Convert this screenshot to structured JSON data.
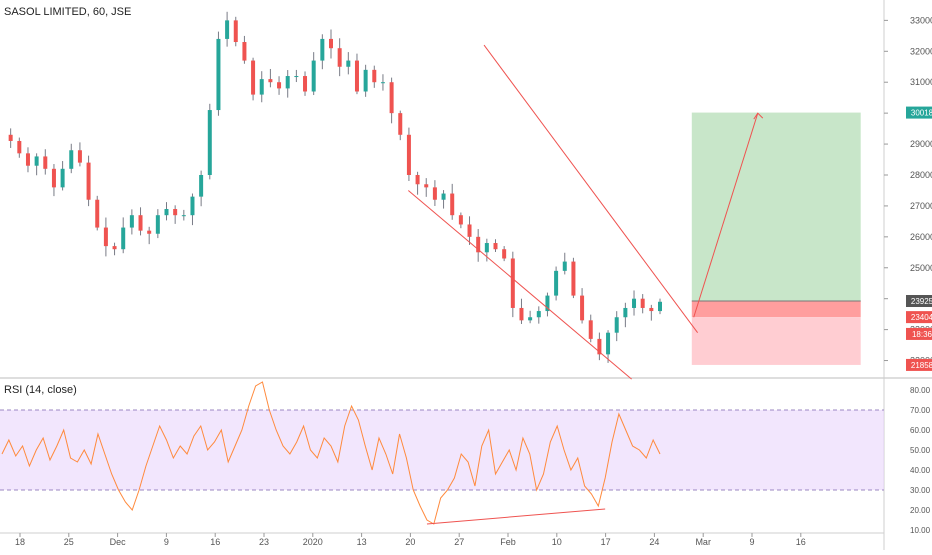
{
  "symbol_title": "SASOL LIMITED, 60, JSE",
  "rsi_title": "RSI (14, close)",
  "chart_data": [
    {
      "type": "candlestick",
      "title": "SASOL LIMITED, 60, JSE",
      "ylim": [
        21500,
        33400
      ],
      "price_ticks": [
        22000,
        23000,
        24000,
        25000,
        26000,
        27000,
        28000,
        29000,
        30000,
        31000,
        32000,
        33000
      ],
      "x_ticks": [
        "18",
        "25",
        "Dec",
        "9",
        "16",
        "23",
        "2020",
        "13",
        "20",
        "27",
        "Feb",
        "10",
        "17",
        "24",
        "Mar",
        "9",
        "16"
      ],
      "price_path": [
        29300,
        29100,
        28700,
        28300,
        28600,
        28200,
        27600,
        28200,
        28800,
        28400,
        27200,
        26300,
        25700,
        25600,
        26300,
        26700,
        26200,
        26100,
        26700,
        26900,
        26700,
        26700,
        27300,
        28000,
        30100,
        32400,
        33000,
        32300,
        31700,
        30600,
        31100,
        31000,
        30800,
        31200,
        31200,
        30700,
        31700,
        32400,
        32100,
        31500,
        31700,
        30700,
        31400,
        31000,
        31000,
        30000,
        29300,
        28000,
        27700,
        27600,
        27200,
        27400,
        26700,
        26400,
        26000,
        25500,
        25800,
        25600,
        25300,
        23700,
        23300,
        23400,
        23600,
        24100,
        24900,
        25200,
        24100,
        23300,
        22700,
        22200,
        22900,
        23400,
        23700,
        24000,
        23700,
        23600,
        23900
      ],
      "markers": [
        {
          "label": "30018",
          "value": 30018,
          "color": "#26a69a"
        },
        {
          "label": "23925",
          "value": 23925,
          "color": "#555555"
        },
        {
          "label": "23404",
          "value": 23404,
          "color": "#ef5350"
        },
        {
          "label": "18:36",
          "value": 22860,
          "color": "#ef5350"
        },
        {
          "label": "21858",
          "value": 21858,
          "color": "#ef5350"
        }
      ],
      "channel": {
        "upper": [
          [
            23.9,
            32200
          ],
          [
            34.9,
            22900
          ]
        ],
        "lower": [
          [
            20.0,
            27500
          ],
          [
            31.5,
            21400
          ]
        ]
      },
      "position": {
        "entry": 23925,
        "target": 30018,
        "stop": 21858,
        "start_index": 34.6,
        "end_index": 43.3
      },
      "forecast_arrow": [
        [
          34.7,
          23400
        ],
        [
          38.0,
          30000
        ]
      ],
      "colors": {
        "up": "#26a69a",
        "down": "#ef5350",
        "wick": "#787b86",
        "target_zone": "#c8e6c9",
        "stop_zone": "#ffcdd2",
        "stop_zone_dark": "#ff9e9e",
        "channel": "#ef5350"
      }
    },
    {
      "type": "line",
      "title": "RSI (14, close)",
      "ylim": [
        10,
        85
      ],
      "ticks": [
        10,
        20,
        30,
        40,
        50,
        60,
        70,
        80
      ],
      "tick_labels": [
        "10.00",
        "20.00",
        "30.00",
        "40.00",
        "50.00",
        "60.00",
        "70.00",
        "80.00"
      ],
      "overbought": 70,
      "oversold": 30,
      "values": [
        48,
        55,
        47,
        52,
        42,
        50,
        56,
        45,
        52,
        60,
        46,
        44,
        50,
        43,
        58,
        48,
        38,
        30,
        24,
        20,
        30,
        42,
        52,
        62,
        55,
        46,
        52,
        48,
        57,
        62,
        50,
        54,
        60,
        44,
        52,
        60,
        72,
        82,
        84,
        70,
        60,
        52,
        48,
        54,
        62,
        50,
        46,
        56,
        52,
        44,
        62,
        72,
        65,
        52,
        40,
        56,
        48,
        38,
        58,
        46,
        30,
        22,
        15,
        13,
        26,
        30,
        36,
        48,
        44,
        32,
        52,
        60,
        38,
        44,
        50,
        40,
        56,
        48,
        30,
        38,
        54,
        62,
        50,
        40,
        46,
        32,
        28,
        22,
        36,
        54,
        68,
        60,
        52,
        50,
        46,
        55,
        48
      ],
      "divergence_line": [
        [
          62,
          13
        ],
        [
          88,
          20.5
        ]
      ],
      "colors": {
        "line": "#ff8a3d",
        "band": "#e9d5fb",
        "band_border": "#9b87c2"
      }
    }
  ]
}
